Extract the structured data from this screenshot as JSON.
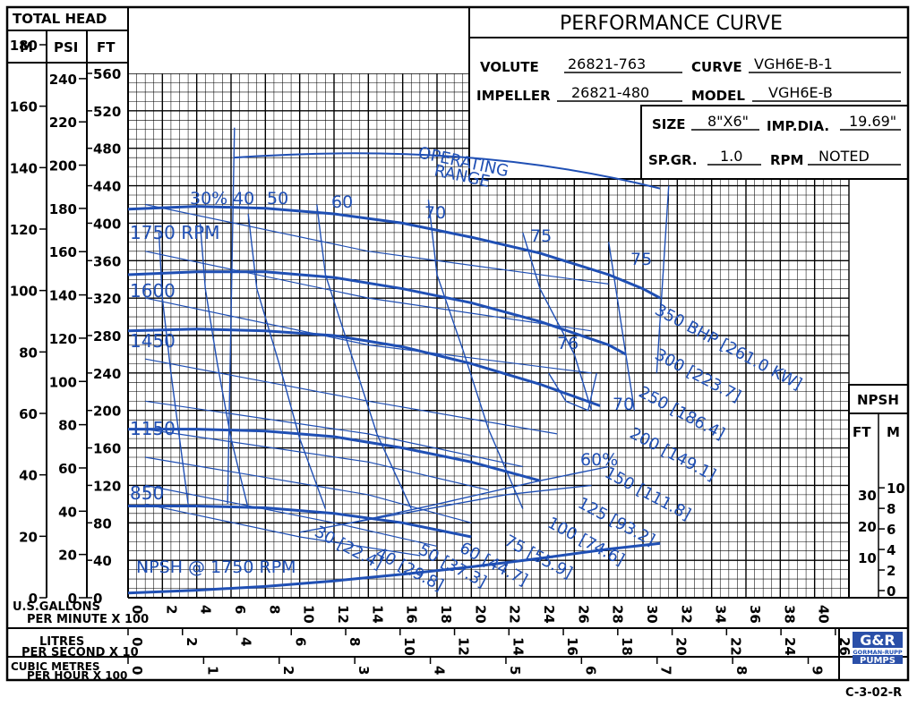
{
  "header": {
    "total_head": "TOTAL HEAD",
    "unit_m": "M",
    "unit_psi": "PSI",
    "unit_ft": "FT",
    "title": "PERFORMANCE CURVE"
  },
  "specs": {
    "volute_label": "VOLUTE",
    "volute_value": "26821-763",
    "curve_label": "CURVE",
    "curve_value": "VGH6E-B-1",
    "impeller_label": "IMPELLER",
    "impeller_value": "26821-480",
    "model_label": "MODEL",
    "model_value": "VGH6E-B",
    "size_label": "SIZE",
    "size_value": "8\"X6\"",
    "impdia_label": "IMP.DIA.",
    "impdia_value": "19.69\"",
    "spgr_label": "SP.GR.",
    "spgr_value": "1.0",
    "rpm_label": "RPM",
    "rpm_value": "NOTED"
  },
  "npsh_box": {
    "title": "NPSH",
    "unit_ft": "FT",
    "unit_m": "M"
  },
  "axes": {
    "x_label_1": "U.S.GALLONS",
    "x_label_2": "PER MINUTE X 100",
    "lps_label_1": "LITRES",
    "lps_label_2": "PER SECOND X 10",
    "cmh_label_1": "CUBIC METRES",
    "cmh_label_2": "PER HOUR X 100"
  },
  "footer": {
    "code": "C-3-02-R",
    "logo_text": "G&R",
    "logo_sub": "GORMAN-RUPP",
    "logo_pumps": "PUMPS"
  },
  "chart_data": {
    "type": "line",
    "x_unit": "U.S. gallons per minute x 100",
    "y_unit": "ft",
    "xlim": [
      0,
      42
    ],
    "ylim": [
      0,
      560
    ],
    "grid": true,
    "ticks": {
      "x": [
        "0",
        "2",
        "4",
        "6",
        "8",
        "10",
        "12",
        "14",
        "16",
        "18",
        "20",
        "22",
        "24",
        "26",
        "28",
        "30",
        "32",
        "34",
        "36",
        "38",
        "40"
      ],
      "ft": [
        "0",
        "40",
        "80",
        "120",
        "160",
        "200",
        "240",
        "280",
        "320",
        "360",
        "400",
        "440",
        "480",
        "520",
        "560"
      ],
      "psi": [
        "0",
        "20",
        "40",
        "60",
        "80",
        "100",
        "120",
        "140",
        "160",
        "180",
        "200",
        "220",
        "240"
      ],
      "m": [
        "0",
        "20",
        "40",
        "60",
        "80",
        "100",
        "120",
        "140",
        "160",
        "180"
      ],
      "lps": [
        "0",
        "2",
        "4",
        "6",
        "8",
        "10",
        "12",
        "14",
        "16",
        "18",
        "20",
        "22",
        "24",
        "26"
      ],
      "cmh": [
        "0",
        "1",
        "2",
        "3",
        "4",
        "5",
        "6",
        "7",
        "8",
        "9"
      ],
      "npsh_ft": [
        "10",
        "20",
        "30"
      ],
      "npsh_m": [
        "0",
        "2",
        "4",
        "6",
        "8",
        "10"
      ]
    },
    "series": [
      {
        "name": "1750 RPM",
        "x": [
          0,
          4,
          8,
          12,
          16,
          20,
          24,
          28,
          30,
          31
        ],
        "y": [
          415,
          418,
          416,
          410,
          400,
          385,
          368,
          345,
          330,
          320
        ]
      },
      {
        "name": "1600",
        "x": [
          0,
          4,
          8,
          12,
          16,
          20,
          24,
          28,
          29
        ],
        "y": [
          345,
          348,
          348,
          342,
          330,
          315,
          295,
          270,
          260
        ]
      },
      {
        "name": "1450",
        "x": [
          0,
          4,
          8,
          12,
          16,
          20,
          24,
          27.5
        ],
        "y": [
          285,
          287,
          285,
          280,
          268,
          250,
          228,
          205
        ]
      },
      {
        "name": "1150",
        "x": [
          0,
          4,
          8,
          12,
          16,
          20,
          24
        ],
        "y": [
          180,
          180,
          178,
          172,
          160,
          145,
          125
        ]
      },
      {
        "name": "850",
        "x": [
          0,
          4,
          8,
          12,
          16,
          20
        ],
        "y": [
          98,
          98,
          96,
          90,
          80,
          65
        ]
      },
      {
        "name": "NPSH @ 1750 RPM",
        "x": [
          0,
          4,
          8,
          12,
          16,
          20,
          24,
          28,
          31
        ],
        "y": [
          5,
          8,
          12,
          18,
          25,
          33,
          42,
          52,
          58
        ]
      }
    ],
    "efficiency_labels": [
      "30%",
      "40",
      "50",
      "60",
      "70",
      "75",
      "75",
      "76",
      "70",
      "60%"
    ],
    "bhp_labels": [
      "350 BHP [261.0 KW]",
      "300 [223.7]",
      "250 [186.4]",
      "200 [149.1]",
      "150 [111.8]",
      "125 [93.2]",
      "100 [74.6]",
      "75 [55.9]",
      "60 [44.7]",
      "50 [37.3]",
      "40 [29.8]",
      "30 [22.4]"
    ],
    "annotations": [
      "OPERATING",
      "RANGE"
    ]
  }
}
